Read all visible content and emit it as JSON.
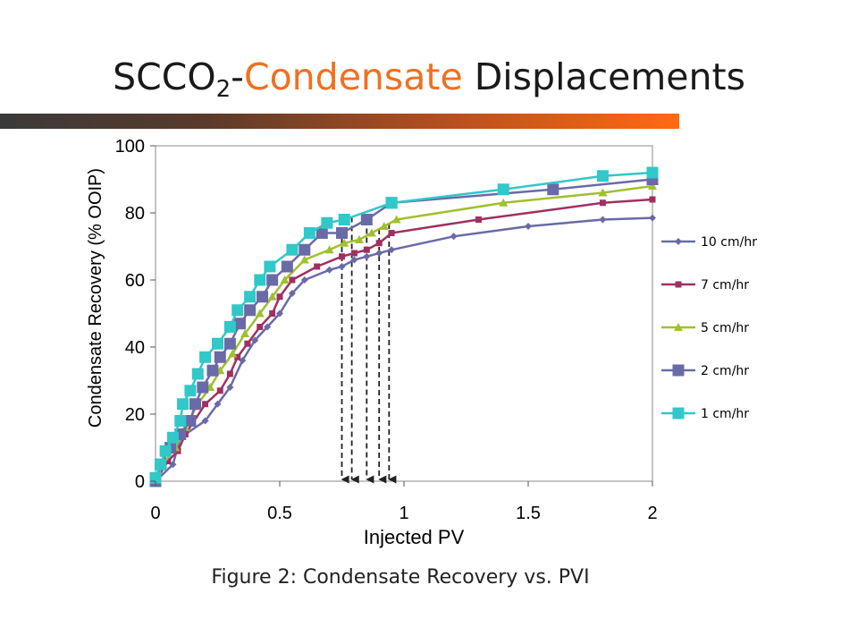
{
  "slide": {
    "title_pre": "SCCO",
    "title_sub": "2",
    "title_dash": "-",
    "title_accent": "Condensate",
    "title_post": " Displacements",
    "caption": "Figure 2: Condensate Recovery vs. PVI",
    "accent_color": "#f07020"
  },
  "chart_data": {
    "type": "line",
    "xlabel": "Injected PV",
    "ylabel": "Condensate Recovery (% OOIP)",
    "xlim": [
      0,
      2
    ],
    "ylim": [
      0,
      100
    ],
    "xticks": [
      "0",
      "0.5",
      "1",
      "1.5",
      "2"
    ],
    "yticks": [
      "0",
      "20",
      "40",
      "60",
      "80",
      "100"
    ],
    "grid": false,
    "legend_position": "right",
    "arrows_x": [
      0.75,
      0.79,
      0.85,
      0.9,
      0.94
    ],
    "series": [
      {
        "name": "10 cm/hr",
        "color": "#6a6aa8",
        "marker": "diamond",
        "points": [
          [
            0,
            0
          ],
          [
            0.07,
            5
          ],
          [
            0.1,
            13
          ],
          [
            0.2,
            18
          ],
          [
            0.25,
            23
          ],
          [
            0.3,
            28
          ],
          [
            0.35,
            36
          ],
          [
            0.4,
            42
          ],
          [
            0.45,
            46
          ],
          [
            0.5,
            50
          ],
          [
            0.55,
            56
          ],
          [
            0.6,
            60
          ],
          [
            0.7,
            63
          ],
          [
            0.75,
            64
          ],
          [
            0.8,
            66
          ],
          [
            0.85,
            67
          ],
          [
            0.9,
            68
          ],
          [
            0.95,
            69
          ],
          [
            1.2,
            73
          ],
          [
            1.5,
            76
          ],
          [
            1.8,
            78
          ],
          [
            2,
            78.5
          ]
        ]
      },
      {
        "name": "7 cm/hr",
        "color": "#a03060",
        "marker": "square",
        "points": [
          [
            0,
            0
          ],
          [
            0.05,
            6
          ],
          [
            0.09,
            9
          ],
          [
            0.12,
            14
          ],
          [
            0.2,
            23
          ],
          [
            0.26,
            27
          ],
          [
            0.3,
            32
          ],
          [
            0.33,
            37
          ],
          [
            0.37,
            41
          ],
          [
            0.42,
            46
          ],
          [
            0.47,
            50
          ],
          [
            0.5,
            55
          ],
          [
            0.55,
            60
          ],
          [
            0.65,
            64
          ],
          [
            0.75,
            67
          ],
          [
            0.8,
            68
          ],
          [
            0.85,
            69
          ],
          [
            0.9,
            71
          ],
          [
            0.95,
            74
          ],
          [
            1.3,
            78
          ],
          [
            1.8,
            83
          ],
          [
            2,
            84
          ]
        ]
      },
      {
        "name": "5 cm/hr",
        "color": "#a0c030",
        "marker": "triangle",
        "points": [
          [
            0,
            0
          ],
          [
            0.03,
            5
          ],
          [
            0.08,
            10
          ],
          [
            0.12,
            16
          ],
          [
            0.17,
            23
          ],
          [
            0.22,
            28
          ],
          [
            0.26,
            33
          ],
          [
            0.31,
            38
          ],
          [
            0.36,
            44
          ],
          [
            0.42,
            50
          ],
          [
            0.47,
            55
          ],
          [
            0.52,
            60
          ],
          [
            0.6,
            66
          ],
          [
            0.7,
            69
          ],
          [
            0.76,
            71
          ],
          [
            0.82,
            72
          ],
          [
            0.87,
            74
          ],
          [
            0.92,
            76
          ],
          [
            0.97,
            78
          ],
          [
            1.4,
            83
          ],
          [
            1.8,
            86
          ],
          [
            2,
            88
          ]
        ]
      },
      {
        "name": "2 cm/hr",
        "color": "#6a6aa8",
        "marker": "big-square",
        "points": [
          [
            0,
            0
          ],
          [
            0.02,
            5
          ],
          [
            0.06,
            10
          ],
          [
            0.1,
            14
          ],
          [
            0.14,
            18
          ],
          [
            0.16,
            23
          ],
          [
            0.19,
            28
          ],
          [
            0.23,
            33
          ],
          [
            0.26,
            37
          ],
          [
            0.3,
            41
          ],
          [
            0.34,
            47
          ],
          [
            0.38,
            51
          ],
          [
            0.43,
            55
          ],
          [
            0.47,
            60
          ],
          [
            0.53,
            64
          ],
          [
            0.6,
            69
          ],
          [
            0.67,
            74
          ],
          [
            0.75,
            74
          ],
          [
            0.85,
            78
          ],
          [
            0.95,
            83
          ],
          [
            1.6,
            87
          ],
          [
            2,
            90
          ]
        ]
      },
      {
        "name": "1 cm/hr",
        "color": "#30c8c8",
        "marker": "big-square",
        "points": [
          [
            0,
            1
          ],
          [
            0.02,
            5
          ],
          [
            0.04,
            9
          ],
          [
            0.07,
            13
          ],
          [
            0.1,
            18
          ],
          [
            0.11,
            23
          ],
          [
            0.14,
            27
          ],
          [
            0.17,
            32
          ],
          [
            0.2,
            37
          ],
          [
            0.25,
            41
          ],
          [
            0.3,
            46
          ],
          [
            0.33,
            51
          ],
          [
            0.38,
            55
          ],
          [
            0.42,
            60
          ],
          [
            0.46,
            64
          ],
          [
            0.55,
            69
          ],
          [
            0.62,
            74
          ],
          [
            0.69,
            77
          ],
          [
            0.76,
            78
          ],
          [
            0.95,
            83
          ],
          [
            1.4,
            87
          ],
          [
            1.8,
            91
          ],
          [
            2,
            92
          ]
        ]
      }
    ]
  }
}
